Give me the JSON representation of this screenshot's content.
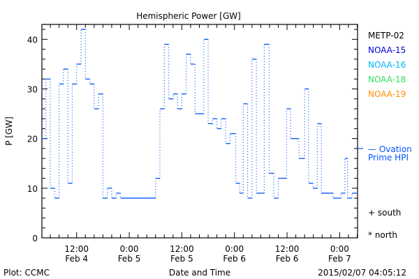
{
  "chart_data": {
    "type": "line",
    "title": "Hemispheric Power [GW]",
    "xlabel": "Date and Time",
    "ylabel": "P [GW]",
    "x_units": "hours since 2015-02-04 00:00",
    "xlim": [
      4.08,
      76.08
    ],
    "ylim": [
      0,
      43
    ],
    "y_major_ticks": [
      0,
      10,
      20,
      30,
      40
    ],
    "y_minor_step": 2,
    "x_minor_step_hours": 2,
    "x_ticks": [
      {
        "hour": 12,
        "time": "12:00",
        "date": "Feb 4"
      },
      {
        "hour": 24,
        "time": "0:00",
        "date": "Feb 5"
      },
      {
        "hour": 36,
        "time": "12:00",
        "date": "Feb 5"
      },
      {
        "hour": 48,
        "time": "0:00",
        "date": "Feb 6"
      },
      {
        "hour": 60,
        "time": "12:00",
        "date": "Feb 6"
      },
      {
        "hour": 72,
        "time": "0:00",
        "date": "Feb 7"
      }
    ],
    "series": [
      {
        "name": "NOAA-15",
        "color": "#0055ff",
        "style": "step",
        "steps": [
          [
            4.08,
            20
          ],
          [
            5,
            32
          ],
          [
            6,
            10
          ],
          [
            7,
            8
          ],
          [
            8,
            31
          ],
          [
            9,
            34
          ],
          [
            10,
            11
          ],
          [
            11,
            31
          ],
          [
            12,
            35
          ],
          [
            13,
            42
          ],
          [
            14,
            32
          ],
          [
            15,
            31
          ],
          [
            16,
            26
          ],
          [
            17,
            29
          ],
          [
            18,
            8
          ],
          [
            19,
            10
          ],
          [
            20,
            8
          ],
          [
            21,
            9
          ],
          [
            22,
            8
          ],
          [
            30,
            12
          ],
          [
            31,
            26
          ],
          [
            32,
            39
          ],
          [
            33,
            28
          ],
          [
            34,
            29
          ],
          [
            35,
            26
          ],
          [
            36,
            29
          ],
          [
            37,
            37
          ],
          [
            38,
            35
          ],
          [
            39,
            25
          ],
          [
            41,
            40
          ],
          [
            42,
            23
          ],
          [
            43,
            24
          ],
          [
            44,
            22
          ],
          [
            45,
            24
          ],
          [
            46,
            19
          ],
          [
            47,
            21
          ],
          [
            48.3,
            11
          ],
          [
            49.2,
            9
          ],
          [
            50,
            27
          ],
          [
            51,
            8
          ],
          [
            52,
            36
          ],
          [
            53,
            9
          ],
          [
            54.8,
            39
          ],
          [
            55.9,
            13
          ],
          [
            57,
            8
          ],
          [
            58,
            12
          ],
          [
            59.9,
            26
          ],
          [
            60.8,
            20
          ],
          [
            62.7,
            16
          ],
          [
            64,
            30
          ],
          [
            64.9,
            11
          ],
          [
            65.9,
            10
          ],
          [
            66.9,
            23
          ],
          [
            67.8,
            9
          ],
          [
            70.5,
            8
          ],
          [
            72.3,
            9
          ],
          [
            73.2,
            16
          ],
          [
            73.8,
            8
          ],
          [
            74.8,
            9
          ]
        ],
        "end": 76.08
      }
    ],
    "ovation_prime_hpi": 18,
    "legend": {
      "placement": "right",
      "entries": [
        {
          "label": "METP-02",
          "color": "#000000"
        },
        {
          "label": "NOAA-15",
          "color": "#0000dd"
        },
        {
          "label": "NOAA-16",
          "color": "#00b4ff"
        },
        {
          "label": "NOAA-18",
          "color": "#30e060"
        },
        {
          "label": "NOAA-19",
          "color": "#ff8c00"
        }
      ],
      "ovation_label_line1": "— Ovation",
      "ovation_label_line2": "Prime HPI",
      "ovation_color": "#0055ff",
      "south": "+ south",
      "north": "* north"
    },
    "footer_left": "Plot: CCMC",
    "footer_right": "2015/02/07 04:05:12"
  }
}
